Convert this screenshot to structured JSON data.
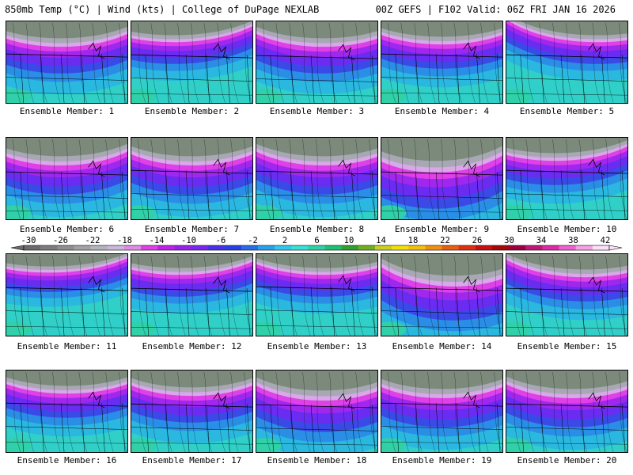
{
  "header": {
    "left": "850mb Temp (°C) | Wind (kts) | College of DuPage NEXLAB",
    "right": "00Z GEFS | F102 Valid: 06Z FRI JAN 16 2026"
  },
  "members": [
    {
      "label": "Ensemble Member: 1",
      "cold_extent": 0.55,
      "cold_center": 0.45
    },
    {
      "label": "Ensemble Member: 2",
      "cold_extent": 0.45,
      "cold_center": 0.35
    },
    {
      "label": "Ensemble Member: 3",
      "cold_extent": 0.55,
      "cold_center": 0.55
    },
    {
      "label": "Ensemble Member: 4",
      "cold_extent": 0.5,
      "cold_center": 0.5
    },
    {
      "label": "Ensemble Member: 5",
      "cold_extent": 0.45,
      "cold_center": 0.75
    },
    {
      "label": "Ensemble Member: 6",
      "cold_extent": 0.6,
      "cold_center": 0.45
    },
    {
      "label": "Ensemble Member: 7",
      "cold_extent": 0.6,
      "cold_center": 0.5
    },
    {
      "label": "Ensemble Member: 8",
      "cold_extent": 0.6,
      "cold_center": 0.55
    },
    {
      "label": "Ensemble Member: 9",
      "cold_extent": 0.75,
      "cold_center": 0.45
    },
    {
      "label": "Ensemble Member: 10",
      "cold_extent": 0.5,
      "cold_center": 0.4
    },
    {
      "label": "Ensemble Member: 11",
      "cold_extent": 0.4,
      "cold_center": 0.35
    },
    {
      "label": "Ensemble Member: 12",
      "cold_extent": 0.45,
      "cold_center": 0.4
    },
    {
      "label": "Ensemble Member: 13",
      "cold_extent": 0.45,
      "cold_center": 0.55
    },
    {
      "label": "Ensemble Member: 14",
      "cold_extent": 0.7,
      "cold_center": 0.6
    },
    {
      "label": "Ensemble Member: 15",
      "cold_extent": 0.5,
      "cold_center": 0.65
    },
    {
      "label": "Ensemble Member: 16",
      "cold_extent": 0.5,
      "cold_center": 0.5
    },
    {
      "label": "Ensemble Member: 17",
      "cold_extent": 0.55,
      "cold_center": 0.5
    },
    {
      "label": "Ensemble Member: 18",
      "cold_extent": 0.65,
      "cold_center": 0.55
    },
    {
      "label": "Ensemble Member: 19",
      "cold_extent": 0.6,
      "cold_center": 0.5
    },
    {
      "label": "Ensemble Member: 20",
      "cold_extent": 0.6,
      "cold_center": 0.55
    }
  ],
  "colorbar": {
    "ticks": [
      "-30",
      "-26",
      "-22",
      "-18",
      "-14",
      "-10",
      "-6",
      "-2",
      "2",
      "6",
      "10",
      "14",
      "18",
      "22",
      "26",
      "30",
      "34",
      "38",
      "42"
    ],
    "colors": [
      "#6b6b6b",
      "#7d7d7d",
      "#8f8f8f",
      "#a3a3a3",
      "#b4b4bc",
      "#c8b8dc",
      "#e08ae8",
      "#e040e8",
      "#c020e8",
      "#9a20ee",
      "#7a28f0",
      "#4a30e8",
      "#2a40e6",
      "#2a6ce8",
      "#2aa0ee",
      "#30c8ec",
      "#38e0d8",
      "#30d0a8",
      "#20c070",
      "#30a030",
      "#70b020",
      "#c8d020",
      "#f0e010",
      "#f4c010",
      "#f09010",
      "#e86010",
      "#e03010",
      "#c81010",
      "#a80808",
      "#a00040",
      "#c01878",
      "#e028a8",
      "#f060d0",
      "#f8a0e8",
      "#fce0f8"
    ]
  }
}
